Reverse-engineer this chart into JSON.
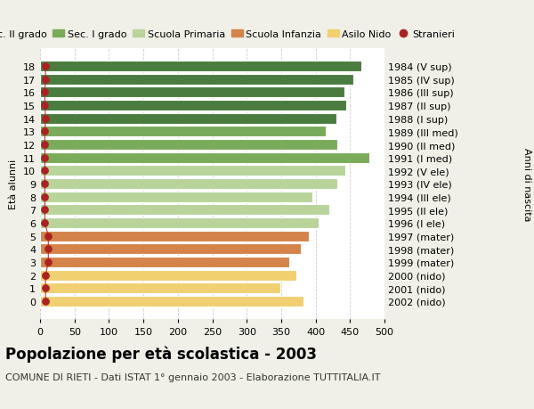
{
  "ages": [
    18,
    17,
    16,
    15,
    14,
    13,
    12,
    11,
    10,
    9,
    8,
    7,
    6,
    5,
    4,
    3,
    2,
    1,
    0
  ],
  "labels_right": [
    "1984 (V sup)",
    "1985 (IV sup)",
    "1986 (III sup)",
    "1987 (II sup)",
    "1988 (I sup)",
    "1989 (III med)",
    "1990 (II med)",
    "1991 (I med)",
    "1992 (V ele)",
    "1993 (IV ele)",
    "1994 (III ele)",
    "1995 (II ele)",
    "1996 (I ele)",
    "1997 (mater)",
    "1998 (mater)",
    "1999 (mater)",
    "2000 (nido)",
    "2001 (nido)",
    "2002 (nido)"
  ],
  "bar_values": [
    466,
    455,
    442,
    445,
    430,
    415,
    432,
    478,
    443,
    432,
    395,
    420,
    405,
    390,
    378,
    362,
    372,
    349,
    382
  ],
  "stranieri_values": [
    8,
    8,
    7,
    7,
    8,
    7,
    7,
    7,
    7,
    7,
    7,
    7,
    7,
    12,
    12,
    12,
    8,
    8,
    8
  ],
  "bar_colors": [
    "#4a7c3f",
    "#4a7c3f",
    "#4a7c3f",
    "#4a7c3f",
    "#4a7c3f",
    "#7aab5a",
    "#7aab5a",
    "#7aab5a",
    "#b8d49a",
    "#b8d49a",
    "#b8d49a",
    "#b8d49a",
    "#b8d49a",
    "#d4844a",
    "#d4844a",
    "#d4844a",
    "#f0d070",
    "#f0d070",
    "#f0d070"
  ],
  "legend_items": [
    {
      "label": "Sec. II grado",
      "color": "#4a7c3f"
    },
    {
      "label": "Sec. I grado",
      "color": "#7aab5a"
    },
    {
      "label": "Scuola Primaria",
      "color": "#b8d49a"
    },
    {
      "label": "Scuola Infanzia",
      "color": "#d4844a"
    },
    {
      "label": "Asilo Nido",
      "color": "#f0d070"
    },
    {
      "label": "Stranieri",
      "color": "#aa2222"
    }
  ],
  "ylabel_left": "Età alunni",
  "ylabel_right": "Anni di nascita",
  "title": "Popolazione per età scolastica - 2003",
  "subtitle": "COMUNE DI RIETI - Dati ISTAT 1° gennaio 2003 - Elaborazione TUTTITALIA.IT",
  "xlim": [
    0,
    500
  ],
  "xticks": [
    0,
    50,
    100,
    150,
    200,
    250,
    300,
    350,
    400,
    450,
    500
  ],
  "bg_color": "#f0f0e8",
  "bar_bg_color": "#ffffff",
  "stranieri_color": "#aa2222",
  "stranieri_dot_size": 28,
  "bar_height": 0.82,
  "title_fontsize": 12,
  "subtitle_fontsize": 8,
  "axis_label_fontsize": 8,
  "tick_fontsize": 8,
  "legend_fontsize": 8
}
